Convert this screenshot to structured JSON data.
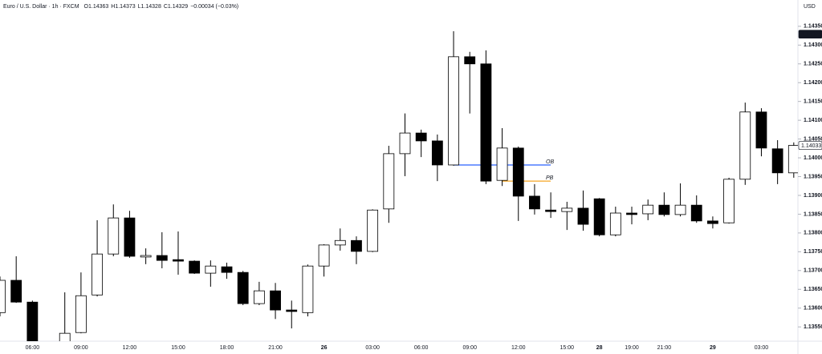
{
  "chart_data": {
    "type": "candlestick",
    "header": [
      "Euro / U.S. Dollar · 1h · FXCM",
      "O1.14363",
      "H1.14373",
      "L1.14328",
      "C1.14329",
      "−0.00034 (−0.03%)"
    ],
    "currency": "USD",
    "categories": [
      null,
      null,
      "06:00",
      null,
      null,
      "09:00",
      null,
      null,
      "12:00",
      null,
      null,
      "15:00",
      null,
      null,
      "18:00",
      null,
      null,
      "21:00",
      null,
      null,
      "26",
      null,
      null,
      "03:00",
      null,
      null,
      "06:00",
      null,
      null,
      "09:00",
      null,
      null,
      "12:00",
      null,
      null,
      "15:00",
      null,
      "28",
      null,
      "19:00",
      null,
      "21:00",
      null,
      null,
      "29",
      null,
      null,
      "03:00",
      null,
      null
    ],
    "open": [
      1.13588,
      1.13674,
      1.13616,
      null,
      1.13499,
      1.13535,
      1.13635,
      1.13744,
      1.1384,
      1.13736,
      1.1374,
      1.13729,
      1.13725,
      1.13693,
      1.1371,
      1.13695,
      1.13612,
      1.13646,
      1.13595,
      1.13588,
      1.13712,
      1.13768,
      1.1378,
      1.13751,
      1.13864,
      1.14011,
      1.14066,
      1.14045,
      1.13981,
      1.14269,
      1.1425,
      1.1394,
      1.14026,
      1.13898,
      1.13861,
      1.13857,
      1.13866,
      1.13891,
      1.13795,
      1.13853,
      1.13851,
      1.13874,
      1.13849,
      1.13874,
      1.13832,
      1.13827,
      1.13943,
      1.14122,
      1.14024,
      1.1396
    ],
    "high": [
      1.13684,
      1.13738,
      1.1362,
      null,
      1.13642,
      1.13695,
      1.13834,
      1.13876,
      1.13859,
      1.13759,
      1.13802,
      1.13804,
      1.13727,
      1.13727,
      1.13721,
      1.13699,
      1.1367,
      1.13667,
      1.1362,
      1.13716,
      1.1377,
      1.13812,
      1.13791,
      1.13863,
      1.14032,
      1.14118,
      1.14075,
      1.14062,
      1.14337,
      1.14282,
      1.14286,
      1.14079,
      1.1403,
      1.1393,
      1.13908,
      1.13883,
      1.13913,
      1.13893,
      1.1387,
      1.1387,
      1.13889,
      1.13908,
      1.13932,
      1.139,
      1.13844,
      1.13947,
      1.14147,
      1.14132,
      1.14047,
      1.14041
    ],
    "low": [
      1.13578,
      1.13614,
      1.13482,
      null,
      1.13493,
      1.13533,
      1.13631,
      1.13738,
      1.13734,
      1.13717,
      1.13706,
      1.13689,
      1.13691,
      1.13657,
      1.13678,
      1.13608,
      1.13608,
      1.13571,
      1.13546,
      1.13578,
      1.13684,
      1.13753,
      1.13717,
      1.13749,
      1.13827,
      1.13951,
      1.14002,
      1.13938,
      1.13979,
      1.14118,
      1.1393,
      1.13925,
      1.13832,
      1.13849,
      1.1384,
      1.13808,
      1.13806,
      1.13791,
      1.13791,
      1.13823,
      1.13834,
      1.13844,
      1.13844,
      1.13827,
      1.13812,
      1.13825,
      1.13928,
      1.14004,
      1.1393,
      1.13947
    ],
    "close": [
      1.13674,
      1.13616,
      1.13493,
      null,
      1.13533,
      1.13633,
      1.13744,
      1.1384,
      1.13738,
      1.1374,
      1.13727,
      1.13725,
      1.13693,
      1.13712,
      1.13695,
      1.13612,
      1.13646,
      1.13595,
      1.13591,
      1.13712,
      1.13768,
      1.1378,
      1.13751,
      1.13861,
      1.14011,
      1.14066,
      1.14045,
      1.13981,
      1.14269,
      1.1425,
      1.13938,
      1.14026,
      1.13898,
      1.13864,
      1.13857,
      1.13866,
      1.13823,
      1.13795,
      1.13853,
      1.13849,
      1.13874,
      1.13849,
      1.13874,
      1.13832,
      1.13825,
      1.13943,
      1.14122,
      1.14026,
      1.1396,
      1.14033
    ],
    "up_color": "#ffffff",
    "down_color": "#000000",
    "ylim": [
      1.13512,
      1.1442
    ],
    "yticks": [
      {
        "value": 1.1355,
        "label": "1.13550"
      },
      {
        "value": 1.136,
        "label": "1.13600"
      },
      {
        "value": 1.1365,
        "label": "1.13650"
      },
      {
        "value": 1.137,
        "label": "1.13700"
      },
      {
        "value": 1.1375,
        "label": "1.13750"
      },
      {
        "value": 1.138,
        "label": "1.13800"
      },
      {
        "value": 1.1385,
        "label": "1.13850"
      },
      {
        "value": 1.139,
        "label": "1.13900"
      },
      {
        "value": 1.1395,
        "label": "1.13950"
      },
      {
        "value": 1.14,
        "label": "1.14000"
      },
      {
        "value": 1.1405,
        "label": "1.14050"
      },
      {
        "value": 1.141,
        "label": "1.14100"
      },
      {
        "value": 1.1415,
        "label": "1.14150"
      },
      {
        "value": 1.142,
        "label": "1.14200"
      },
      {
        "value": 1.1425,
        "label": "1.14250"
      },
      {
        "value": 1.143,
        "label": "1.14300"
      },
      {
        "value": 1.1435,
        "label": "1.14350"
      }
    ],
    "price_tags": [
      {
        "value": 1.14329,
        "style": "filled"
      },
      {
        "value": 1.14033,
        "style": "outline"
      }
    ],
    "annotations": [
      {
        "text": "OB",
        "value": 1.13981,
        "color": "#2962ff"
      },
      {
        "text": "PB",
        "value": 1.13938,
        "color": "#f5a623"
      }
    ]
  }
}
